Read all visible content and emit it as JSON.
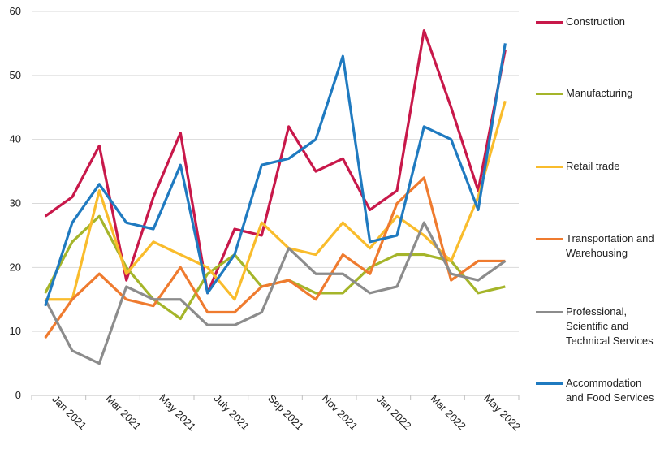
{
  "chart_data": {
    "type": "line",
    "categories": [
      "Jan 2021",
      null,
      "Mar 2021",
      null,
      "May 2021",
      null,
      "July 2021",
      null,
      "Sep 2021",
      null,
      "Nov 2021",
      null,
      "Jan 2022",
      null,
      "Mar 2022",
      null,
      "May 2022",
      null
    ],
    "series": [
      {
        "name": "Construction",
        "color": "#c8184a",
        "values": [
          28,
          31,
          39,
          18,
          31,
          41,
          16,
          26,
          25,
          42,
          35,
          37,
          29,
          32,
          57,
          45,
          32,
          54
        ]
      },
      {
        "name": "Manufacturing",
        "color": "#a5b52a",
        "values": [
          16,
          24,
          28,
          20,
          15,
          12,
          19,
          22,
          17,
          18,
          16,
          16,
          20,
          22,
          22,
          21,
          16,
          17
        ]
      },
      {
        "name": "Retail trade",
        "color": "#f9bc2c",
        "values": [
          15,
          15,
          32,
          19,
          24,
          22,
          20,
          15,
          27,
          23,
          22,
          27,
          23,
          28,
          25,
          21,
          31,
          46
        ]
      },
      {
        "name": "Transportation and Warehousing",
        "color": "#ef7b2f",
        "values": [
          9,
          15,
          19,
          15,
          14,
          20,
          13,
          13,
          17,
          18,
          15,
          22,
          19,
          30,
          34,
          18,
          21,
          21
        ]
      },
      {
        "name": "Professional, Scientific and Technical Services",
        "color": "#8c8c8c",
        "values": [
          15,
          7,
          5,
          17,
          15,
          15,
          11,
          11,
          13,
          23,
          19,
          19,
          16,
          17,
          27,
          19,
          18,
          21
        ]
      },
      {
        "name": "Accommodation and Food Services",
        "color": "#1f7ac0",
        "values": [
          14,
          27,
          33,
          27,
          26,
          36,
          16,
          22,
          36,
          37,
          40,
          53,
          24,
          25,
          42,
          40,
          29,
          55
        ]
      }
    ],
    "ylim": [
      0,
      60
    ],
    "yticks": [
      0,
      10,
      20,
      30,
      40,
      50,
      60
    ],
    "grid": true
  }
}
